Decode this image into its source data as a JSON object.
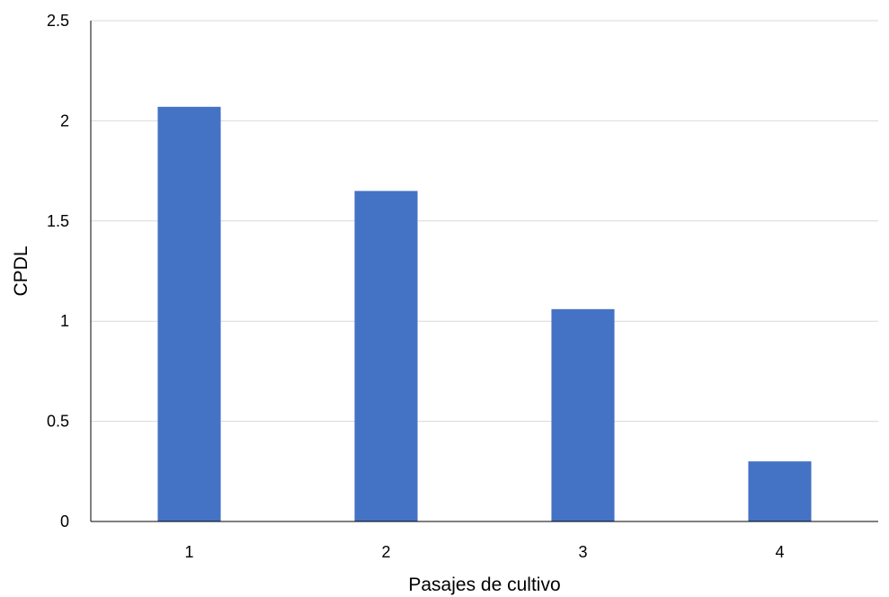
{
  "chart_data": {
    "type": "bar",
    "title": "",
    "xlabel": "Pasajes de cultivo",
    "ylabel": "CPDL",
    "categories": [
      "1",
      "2",
      "3",
      "4"
    ],
    "values": [
      2.07,
      1.65,
      1.06,
      0.3
    ],
    "ylim": [
      0,
      2.5
    ],
    "yticks": [
      "0",
      "0.5",
      "1",
      "1.5",
      "2",
      "2.5"
    ],
    "grid": true,
    "legend": "none",
    "bar_color": "#4472c4",
    "grid_color": "#d9d9d9"
  }
}
